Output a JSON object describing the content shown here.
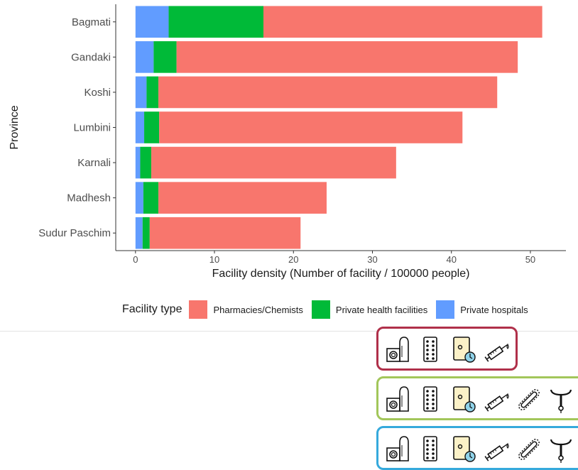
{
  "chart_data": {
    "type": "bar",
    "orientation": "horizontal",
    "stacked": true,
    "title": "",
    "xlabel": "Facility density (Number of facility / 100000 people)",
    "ylabel": "Province",
    "categories": [
      "Bagmati",
      "Gandaki",
      "Koshi",
      "Lumbini",
      "Karnali",
      "Madhesh",
      "Sudur Paschim"
    ],
    "series": [
      {
        "name": "Private hospitals",
        "color": "#619CFF",
        "values": [
          4.2,
          2.3,
          1.4,
          1.1,
          0.6,
          1.0,
          0.9
        ]
      },
      {
        "name": "Private health facilities",
        "color": "#00BA38",
        "values": [
          12.0,
          2.9,
          1.5,
          1.9,
          1.4,
          1.9,
          0.9
        ]
      },
      {
        "name": "Pharmacies/Chemists",
        "color": "#F8766D",
        "values": [
          35.3,
          43.2,
          42.9,
          38.4,
          31.0,
          21.3,
          19.1
        ]
      }
    ],
    "xlim": [
      -2.5,
      54.5
    ],
    "xticks": [
      "0",
      "10",
      "20",
      "30",
      "40",
      "50"
    ],
    "grid": false,
    "legend": {
      "title": "Facility type",
      "position": "bottom",
      "items": [
        "Pharmacies/Chemists",
        "Private health facilities",
        "Private hospitals"
      ]
    }
  },
  "method_panels": [
    {
      "border_color": "#b0304a",
      "icons": [
        "condom-icon",
        "pill-pack-icon",
        "emergency-pill-icon",
        "injection-icon"
      ]
    },
    {
      "border_color": "#a2c65a",
      "icons": [
        "condom-icon",
        "pill-pack-icon",
        "emergency-pill-icon",
        "injection-icon",
        "implant-icon",
        "iud-icon"
      ]
    },
    {
      "border_color": "#35a9dc",
      "icons": [
        "condom-icon",
        "pill-pack-icon",
        "emergency-pill-icon",
        "injection-icon",
        "implant-icon",
        "iud-icon"
      ]
    }
  ]
}
